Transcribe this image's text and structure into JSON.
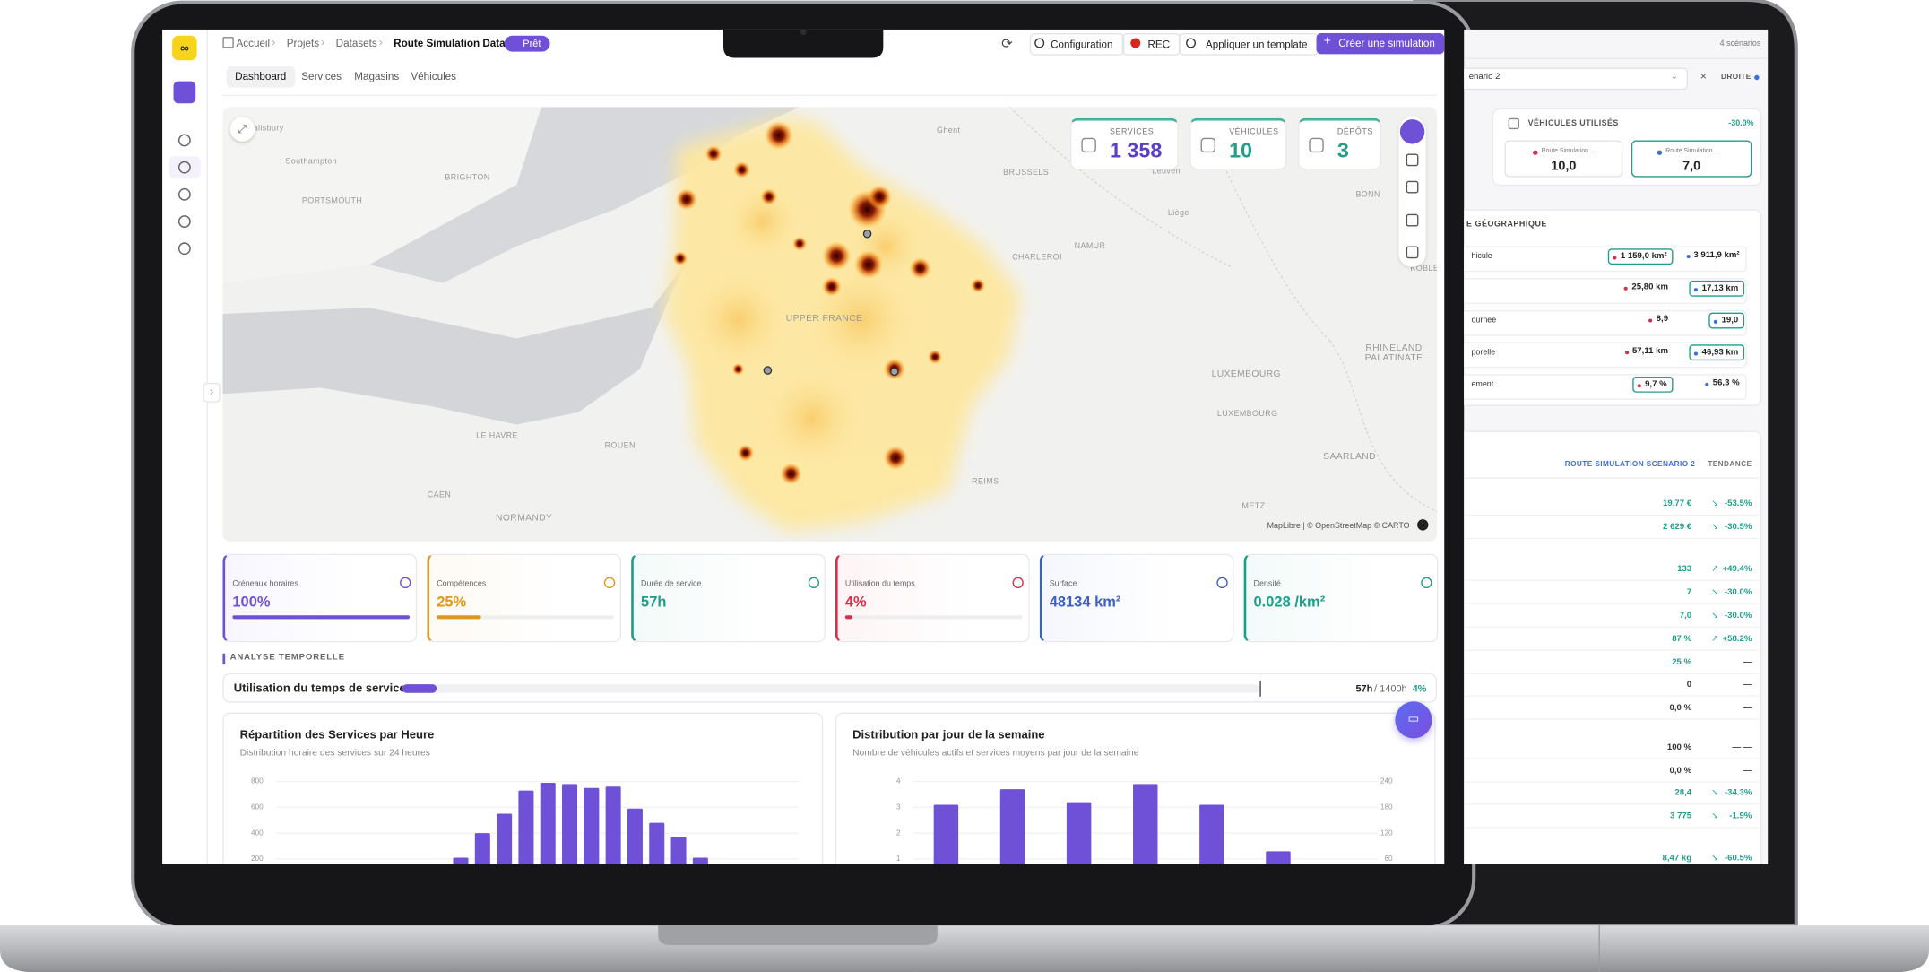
{
  "breadcrumb": [
    "Accueil",
    "Projets",
    "Datasets",
    "Route Simulation Dataset"
  ],
  "status": "Prêt",
  "toolbar": {
    "config": "Configuration",
    "rec": "REC",
    "template": "Appliquer un template",
    "create": "Créer une simulation"
  },
  "tabs": [
    "Dashboard",
    "Services",
    "Magasins",
    "Véhicules"
  ],
  "map": {
    "labels": [
      "Salisbury",
      "Southampton",
      "PORTSMOUTH",
      "BRIGHTON",
      "Ghent",
      "BRUSSELS",
      "Leuven",
      "CHARLEROI",
      "NAMUR",
      "Liège",
      "BONN",
      "KOBLE",
      "UPPER FRANCE",
      "LE HAVRE",
      "ROUEN",
      "CAEN",
      "NORMANDY",
      "REIMS",
      "LUXEMBOURG",
      "LUXEMBOURG",
      "RHINELAND PALATINATE",
      "SAARLAND",
      "METZ"
    ],
    "attribution": "MapLibre | © OpenStreetMap © CARTO"
  },
  "stats": [
    {
      "label": "SERVICES",
      "value": "1 358"
    },
    {
      "label": "VÉHICULES",
      "value": "10"
    },
    {
      "label": "DÉPÔTS",
      "value": "3"
    }
  ],
  "metrics": [
    {
      "label": "Créneaux horaires",
      "value": "100%"
    },
    {
      "label": "Compétences",
      "value": "25%"
    },
    {
      "label": "Durée de service",
      "value": "57h"
    },
    {
      "label": "Utilisation du temps",
      "value": "4%"
    },
    {
      "label": "Surface",
      "value": "48134 km²"
    },
    {
      "label": "Densité",
      "value": "0.028 /km²"
    }
  ],
  "section": "ANALYSE TEMPORELLE",
  "utilization": {
    "label": "Utilisation du temps de service",
    "hours": "57h",
    "total": "/ 1400h",
    "percent": "4%"
  },
  "chart_data": [
    {
      "type": "bar",
      "title": "Répartition des Services par Heure",
      "subtitle": "Distribution horaire des services sur 24 heures",
      "values": [
        0,
        0,
        0,
        0,
        0,
        0,
        0,
        0,
        210,
        400,
        550,
        730,
        790,
        780,
        750,
        760,
        590,
        480,
        370,
        210,
        0,
        0,
        0,
        0
      ],
      "color": "#6f51d8",
      "ylim": [
        0,
        800
      ],
      "yticks": [
        200,
        400,
        600,
        800
      ]
    },
    {
      "type": "bar",
      "title": "Distribution par jour de la semaine",
      "subtitle": "Nombre de véhicules actifs et services moyens par jour de la semaine",
      "values": [
        3.1,
        3.7,
        3.2,
        3.9,
        3.1,
        1.3,
        0
      ],
      "color": "#6f51d8",
      "ylim": [
        0,
        4
      ],
      "yticks": [
        1,
        2,
        3,
        4
      ],
      "y2lim": [
        0,
        240
      ],
      "y2ticks": [
        60,
        120,
        180,
        240
      ]
    }
  ],
  "comparison": {
    "count": "4 scénarios",
    "scenario": "enario 2",
    "side": "DROITE",
    "vehicles": {
      "title": "VÉHICULES UTILISÉS",
      "delta": "-30.0%",
      "left": {
        "name": "Route Simulation ...",
        "value": "10,0"
      },
      "right": {
        "name": "Route Simulation ...",
        "value": "7,0"
      }
    },
    "geo_title": "E GÉOGRAPHIQUE",
    "geo_rows": [
      {
        "label": "hicule",
        "a": "1 159,0 km²",
        "b": "3 911,9 km²"
      },
      {
        "label": "",
        "a": "25,80 km",
        "b": "17,13 km"
      },
      {
        "label": "ournée",
        "a": "8,9",
        "b": "19,0"
      },
      {
        "label": "porelle",
        "a": "57,11 km",
        "b": "46,93 km"
      },
      {
        "label": "ement",
        "a": "9,7 %",
        "b": "56,3 %"
      }
    ],
    "table_header": [
      "ROUTE SIMULATION SCENARIO 2",
      "TENDANCE"
    ],
    "table_rows": [
      {
        "value": "19,77 €",
        "trend": "-53.5%"
      },
      {
        "value": "2 629 €",
        "trend": "-30.5%"
      },
      {
        "value": "133",
        "trend": "+49.4%"
      },
      {
        "value": "7",
        "trend": "-30.0%"
      },
      {
        "value": "7,0",
        "trend": "-30.0%"
      },
      {
        "value": "87 %",
        "trend": "+58.2%"
      },
      {
        "value": "25 %",
        "trend": "—"
      },
      {
        "value": "0",
        "trend": "—"
      },
      {
        "value": "0,0 %",
        "trend": "—"
      },
      {
        "value": "100 %",
        "trend": "— —"
      },
      {
        "value": "0,0 %",
        "trend": "—"
      },
      {
        "value": "28,4",
        "trend": "-34.3%"
      },
      {
        "value": "3 775",
        "trend": "-1.9%"
      },
      {
        "value": "8,47 kg",
        "trend": "-60.5%"
      }
    ]
  }
}
